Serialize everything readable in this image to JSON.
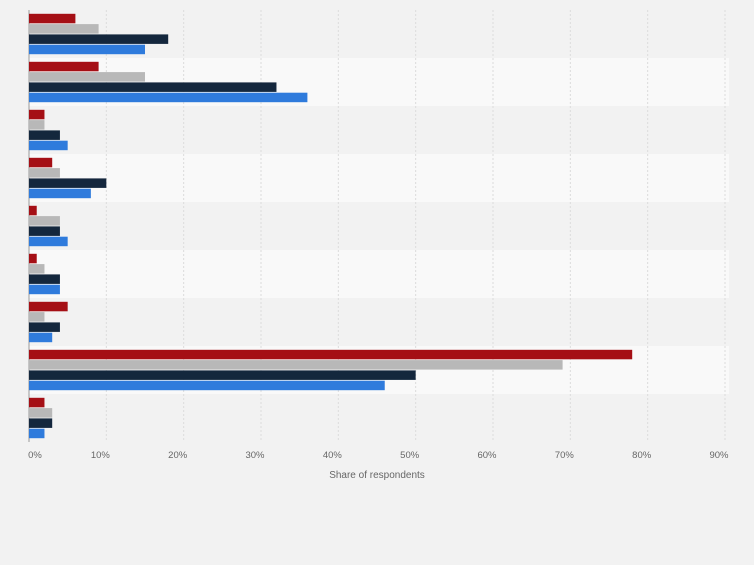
{
  "chart_data": {
    "type": "bar",
    "orientation": "horizontal",
    "title": "",
    "xlabel": "Share of respondents",
    "ylabel": "",
    "xlim": [
      0,
      90
    ],
    "xticks": [
      "0%",
      "10%",
      "20%",
      "30%",
      "40%",
      "50%",
      "60%",
      "70%",
      "80%",
      "90%"
    ],
    "grid": true,
    "categories": [
      "",
      "",
      "",
      "",
      "",
      "",
      "",
      "",
      ""
    ],
    "series": [
      {
        "name": "",
        "color": "#a50f15",
        "values": [
          6,
          9,
          2,
          3,
          1,
          1,
          5,
          78,
          2
        ]
      },
      {
        "name": "",
        "color": "#b8b8b8",
        "values": [
          9,
          15,
          2,
          4,
          4,
          2,
          2,
          69,
          3
        ]
      },
      {
        "name": "",
        "color": "#14273d",
        "values": [
          18,
          32,
          4,
          10,
          4,
          4,
          4,
          50,
          3
        ]
      },
      {
        "name": "",
        "color": "#2f7bdc",
        "values": [
          15,
          36,
          5,
          8,
          5,
          4,
          3,
          46,
          2
        ]
      }
    ]
  }
}
